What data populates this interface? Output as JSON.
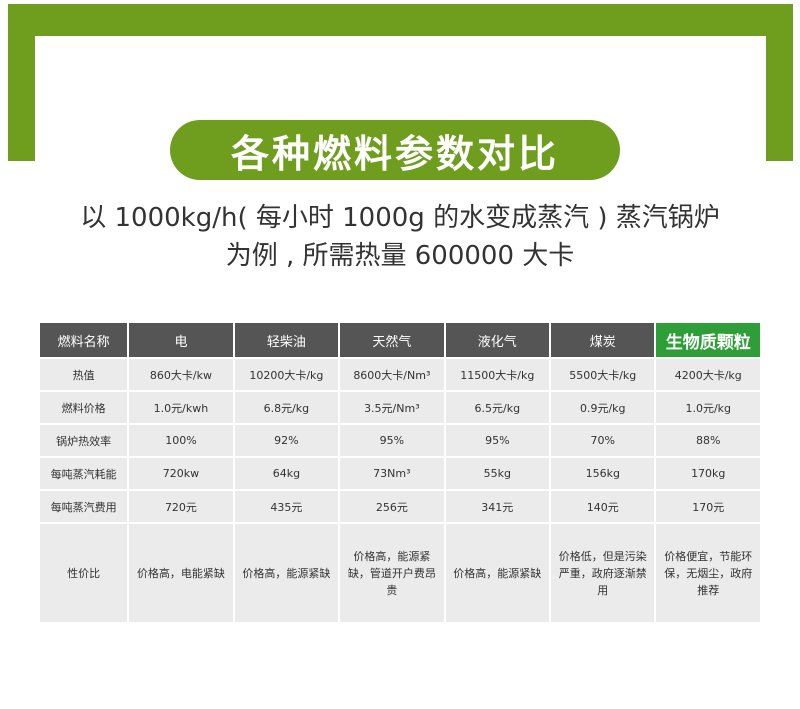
{
  "title": "各种燃料参数对比",
  "subtitle": {
    "line1": "以 1000kg/h( 每小时 1000g 的水变成蒸汽 ) 蒸汽锅炉",
    "line2": "为例 , 所需热量 600000 大卡"
  },
  "table": {
    "headers": [
      "燃料名称",
      "电",
      "轻柴油",
      "天然气",
      "液化气",
      "煤炭",
      "生物质颗粒"
    ],
    "rows": [
      [
        "热值",
        "860大卡/kw",
        "10200大卡/kg",
        "8600大卡/Nm³",
        "11500大卡/kg",
        "5500大卡/kg",
        "4200大卡/kg"
      ],
      [
        "燃料价格",
        "1.0元/kwh",
        "6.8元/kg",
        "3.5元/Nm³",
        "6.5元/kg",
        "0.9元/kg",
        "1.0元/kg"
      ],
      [
        "锅炉热效率",
        "100%",
        "92%",
        "95%",
        "95%",
        "70%",
        "88%"
      ],
      [
        "每吨蒸汽耗能",
        "720kw",
        "64kg",
        "73Nm³",
        "55kg",
        "156kg",
        "170kg"
      ],
      [
        "每吨蒸汽费用",
        "720元",
        "435元",
        "256元",
        "341元",
        "140元",
        "170元"
      ],
      [
        "性价比",
        "价格高，电能紧缺",
        "价格高，能源紧缺",
        "价格高，能源紧缺，管道开户费昂贵",
        "价格高，能源紧缺",
        "价格低，但是污染严重，政府逐渐禁用",
        "价格便宜，节能环保，无烟尘，政府推荐"
      ]
    ]
  }
}
